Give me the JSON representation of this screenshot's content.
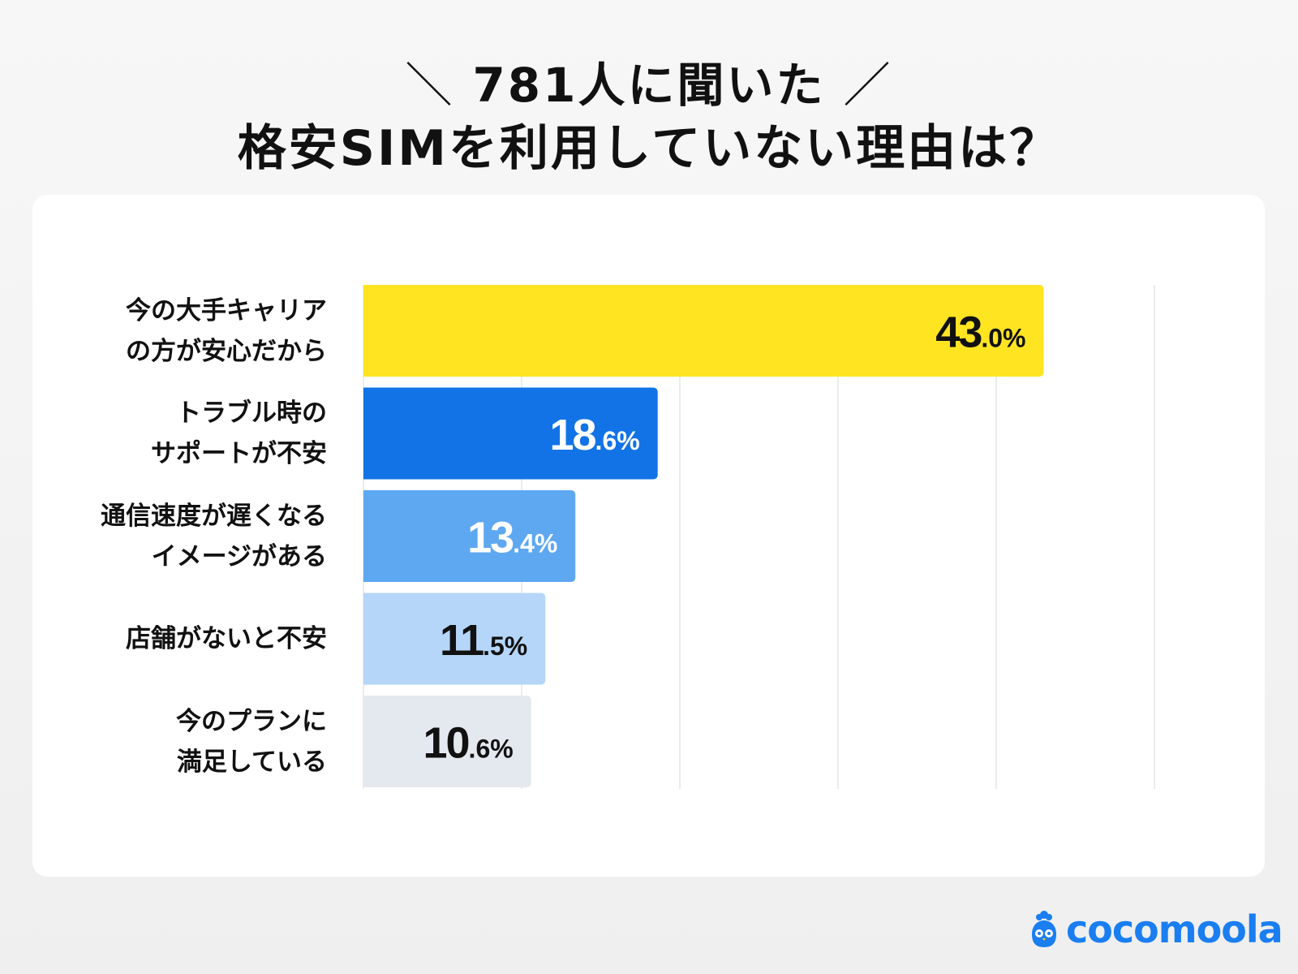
{
  "title": {
    "line1": "781人に聞いた",
    "slash_left": "＼",
    "slash_right": "／",
    "line2": "格安SIMを利用していない理由は？"
  },
  "chart_data": {
    "type": "bar",
    "orientation": "horizontal",
    "categories": [
      "今の大手キャリア\nの方が安心だから",
      "トラブル時の\nサポートが不安",
      "通信速度が遅くなる\nイメージがある",
      "店舗がないと不安",
      "今のプランに\n満足している"
    ],
    "values": [
      43.0,
      18.6,
      13.4,
      11.5,
      10.6
    ],
    "value_labels": [
      {
        "int": "43",
        "dec": ".0%"
      },
      {
        "int": "18",
        "dec": ".6%"
      },
      {
        "int": "13",
        "dec": ".4%"
      },
      {
        "int": "11",
        "dec": ".5%"
      },
      {
        "int": "10",
        "dec": ".6%"
      }
    ],
    "colors": [
      "#ffe422",
      "#1273e6",
      "#5ea8f2",
      "#b5d6f8",
      "#e4e8ef"
    ],
    "label_colors": [
      "#111111",
      "#ffffff",
      "#ffffff",
      "#111111",
      "#111111"
    ],
    "xlim": [
      0,
      50
    ],
    "grid": true,
    "gridlines": [
      10,
      20,
      30,
      40,
      50
    ]
  },
  "logo": {
    "text": "cocomoola",
    "color": "#1a7ef0"
  }
}
